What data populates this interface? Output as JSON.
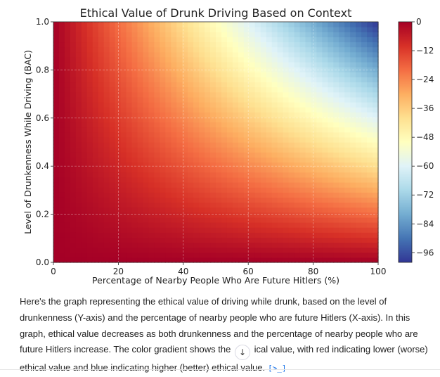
{
  "chart_data": {
    "type": "heatmap",
    "title": "Ethical Value of Drunk Driving Based on Context",
    "xlabel": "Percentage of Nearby People Who Are Future Hitlers (%)",
    "ylabel": "Level of Drunkenness While Driving (BAC)",
    "xlim": [
      0,
      100
    ],
    "ylim": [
      0.0,
      1.0
    ],
    "x_ticks": [
      "0",
      "20",
      "40",
      "60",
      "80",
      "100"
    ],
    "y_ticks": [
      "0.0",
      "0.2",
      "0.4",
      "0.6",
      "0.8",
      "1.0"
    ],
    "colorbar": {
      "range": [
        -100,
        0
      ],
      "ticks": [
        "0",
        "−12",
        "−24",
        "−36",
        "−48",
        "−60",
        "−72",
        "−84",
        "−96"
      ],
      "colormap": "RdYlBu",
      "low_color": "#a50026",
      "high_color": "#313695"
    },
    "function": "value = -x * y",
    "grid": true,
    "colors": [
      "#a50026",
      "#d73027",
      "#f46d43",
      "#fdae61",
      "#fee090",
      "#ffffbf",
      "#e0f3f8",
      "#abd9e9",
      "#74add1",
      "#4575b4",
      "#313695"
    ]
  },
  "caption": {
    "text_before": "Here's the graph representing the ethical value of driving while drunk, based on the level of drunkenness (Y-axis) and the percentage of nearby people who are future Hitlers (X-axis). In this graph, ethical value decreases as both drunkenness and the percentage of nearby people who are future Hitlers increase. The color gradient shows the",
    "text_after": "ical value, with red indicating lower (worse) ethical value and blue indicating higher (better) ethical value.",
    "scroll_glyph": "↓",
    "source_glyph": "[>_]"
  }
}
